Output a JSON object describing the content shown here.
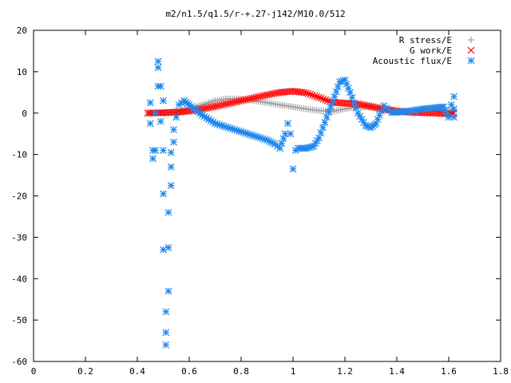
{
  "chart_data": {
    "type": "scatter",
    "title": "m2/n1.5/q1.5/r-+.27-j142/M10.0/512",
    "xlabel": "",
    "ylabel": "",
    "xlim": [
      0,
      1.8
    ],
    "ylim": [
      -60,
      20
    ],
    "x_ticks": [
      "0",
      "0.2",
      "0.4",
      "0.6",
      "0.8",
      "1",
      "1.2",
      "1.4",
      "1.6",
      "1.8"
    ],
    "y_ticks": [
      "20",
      "10",
      "0",
      "-10",
      "-20",
      "-30",
      "-40",
      "-50",
      "-60"
    ],
    "grid": false,
    "legend_position": "top-right",
    "series": [
      {
        "name": "R stress/E",
        "marker": "plus",
        "color": "#a0a0a0",
        "points": [
          [
            0.44,
            0
          ],
          [
            0.48,
            0.1
          ],
          [
            0.52,
            0.2
          ],
          [
            0.56,
            0.4
          ],
          [
            0.6,
            1.0
          ],
          [
            0.65,
            2.0
          ],
          [
            0.7,
            3.0
          ],
          [
            0.75,
            3.5
          ],
          [
            0.8,
            3.4
          ],
          [
            0.85,
            3.0
          ],
          [
            0.9,
            2.5
          ],
          [
            0.95,
            2.0
          ],
          [
            1.0,
            1.5
          ],
          [
            1.05,
            1.0
          ],
          [
            1.1,
            0.6
          ],
          [
            1.15,
            0.4
          ],
          [
            1.2,
            1.0
          ],
          [
            1.25,
            1.6
          ],
          [
            1.3,
            1.4
          ],
          [
            1.35,
            0.8
          ],
          [
            1.4,
            0.4
          ],
          [
            1.45,
            0.5
          ],
          [
            1.5,
            0.8
          ],
          [
            1.55,
            1.0
          ],
          [
            1.6,
            0.6
          ],
          [
            1.62,
            0.3
          ]
        ]
      },
      {
        "name": "G work/E",
        "marker": "cross",
        "color": "#ff0000",
        "points": [
          [
            0.44,
            0
          ],
          [
            0.5,
            0.1
          ],
          [
            0.55,
            0.2
          ],
          [
            0.6,
            0.5
          ],
          [
            0.65,
            1.0
          ],
          [
            0.7,
            1.6
          ],
          [
            0.75,
            2.3
          ],
          [
            0.8,
            3.0
          ],
          [
            0.85,
            3.7
          ],
          [
            0.9,
            4.4
          ],
          [
            0.95,
            5.0
          ],
          [
            1.0,
            5.3
          ],
          [
            1.05,
            4.9
          ],
          [
            1.1,
            3.8
          ],
          [
            1.15,
            2.6
          ],
          [
            1.2,
            2.4
          ],
          [
            1.25,
            2.2
          ],
          [
            1.3,
            1.6
          ],
          [
            1.35,
            1.0
          ],
          [
            1.4,
            0.5
          ],
          [
            1.45,
            0.2
          ],
          [
            1.5,
            0.1
          ],
          [
            1.55,
            0
          ],
          [
            1.6,
            -0.2
          ],
          [
            1.62,
            0
          ]
        ]
      },
      {
        "name": "Acoustic flux/E",
        "marker": "star",
        "color": "#1f88ee",
        "points": [
          [
            0.45,
            2.5
          ],
          [
            0.45,
            -2.5
          ],
          [
            0.46,
            -9
          ],
          [
            0.46,
            -11
          ],
          [
            0.47,
            -9
          ],
          [
            0.47,
            0
          ],
          [
            0.48,
            6.5
          ],
          [
            0.48,
            11
          ],
          [
            0.48,
            12.5
          ],
          [
            0.49,
            6.5
          ],
          [
            0.49,
            -2
          ],
          [
            0.5,
            3
          ],
          [
            0.5,
            -9
          ],
          [
            0.5,
            -19.5
          ],
          [
            0.5,
            -33
          ],
          [
            0.51,
            -48
          ],
          [
            0.51,
            -53
          ],
          [
            0.51,
            -56
          ],
          [
            0.52,
            -43
          ],
          [
            0.52,
            -32.5
          ],
          [
            0.52,
            -24
          ],
          [
            0.53,
            -17.5
          ],
          [
            0.53,
            -13
          ],
          [
            0.53,
            -9.5
          ],
          [
            0.54,
            -7
          ],
          [
            0.54,
            -4
          ],
          [
            0.55,
            -1
          ],
          [
            0.56,
            2
          ],
          [
            0.58,
            3
          ],
          [
            0.6,
            2
          ],
          [
            0.65,
            -0.5
          ],
          [
            0.7,
            -2.5
          ],
          [
            0.75,
            -3.5
          ],
          [
            0.8,
            -4.5
          ],
          [
            0.85,
            -5.5
          ],
          [
            0.9,
            -6.5
          ],
          [
            0.93,
            -7.5
          ],
          [
            0.95,
            -8.5
          ],
          [
            0.97,
            -5
          ],
          [
            0.98,
            -2.5
          ],
          [
            0.99,
            -5
          ],
          [
            1.0,
            -13.5
          ],
          [
            1.01,
            -9
          ],
          [
            1.02,
            -8.5
          ],
          [
            1.05,
            -8.5
          ],
          [
            1.08,
            -8
          ],
          [
            1.1,
            -6
          ],
          [
            1.13,
            -1
          ],
          [
            1.16,
            4
          ],
          [
            1.18,
            7.5
          ],
          [
            1.2,
            8
          ],
          [
            1.22,
            5
          ],
          [
            1.25,
            0
          ],
          [
            1.28,
            -3
          ],
          [
            1.3,
            -3.5
          ],
          [
            1.32,
            -2.5
          ],
          [
            1.34,
            0.5
          ],
          [
            1.35,
            1.8
          ],
          [
            1.36,
            1.2
          ],
          [
            1.38,
            0.2
          ],
          [
            1.4,
            0.2
          ],
          [
            1.45,
            0.5
          ],
          [
            1.5,
            1.0
          ],
          [
            1.55,
            1.3
          ],
          [
            1.58,
            1.5
          ],
          [
            1.6,
            -1.0
          ],
          [
            1.61,
            2.0
          ],
          [
            1.62,
            4.0
          ],
          [
            1.62,
            1.0
          ],
          [
            1.62,
            -1.0
          ]
        ]
      }
    ]
  }
}
